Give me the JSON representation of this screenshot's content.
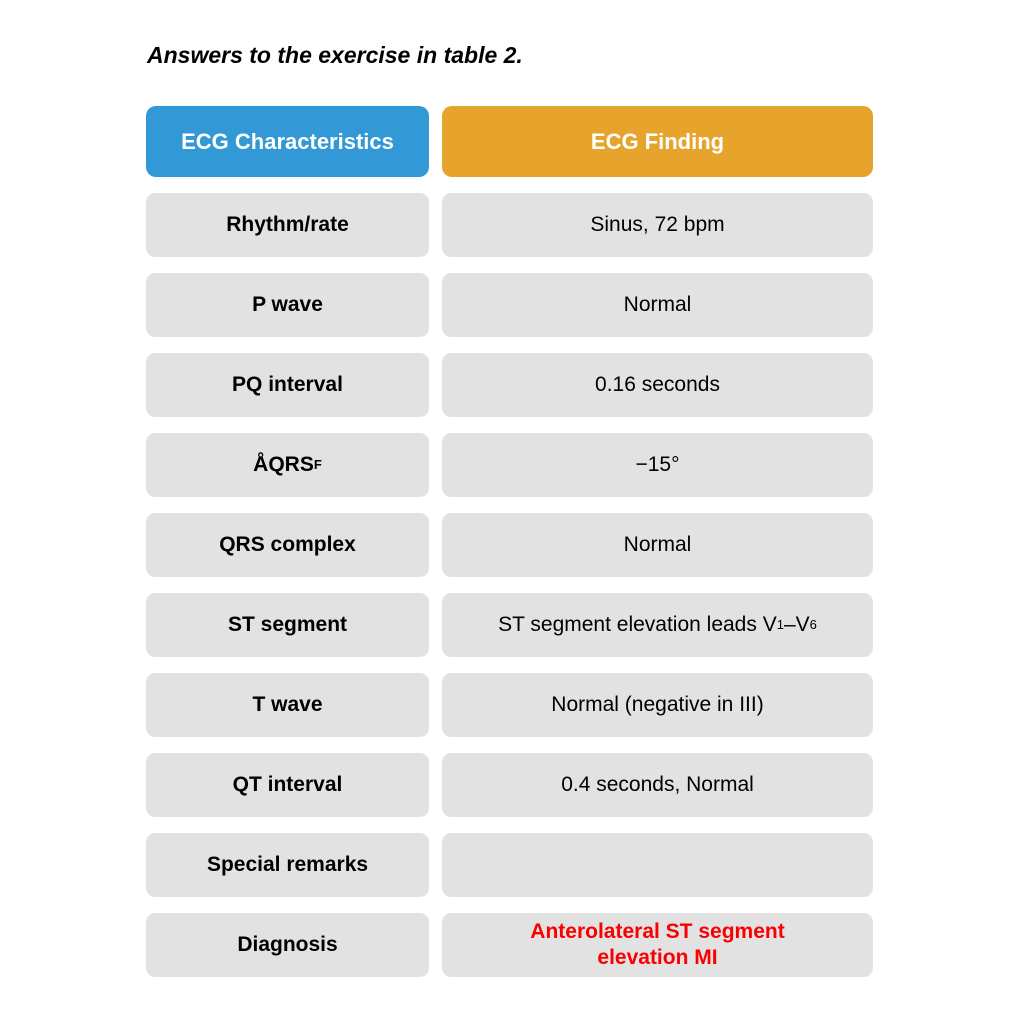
{
  "caption": "Answers to the exercise in table 2.",
  "colors": {
    "header_left_bg": "#3399d6",
    "header_right_bg": "#e6a42c",
    "cell_bg": "#e2e2e2",
    "diagnosis_text": "#fa0000"
  },
  "table": {
    "header": {
      "left": "ECG Characteristics",
      "right": "ECG Finding"
    },
    "rows": [
      {
        "label": [
          {
            "t": "Rhythm/rate"
          }
        ],
        "value": [
          {
            "t": "Sinus, 72 bpm"
          }
        ]
      },
      {
        "label": [
          {
            "t": "P wave"
          }
        ],
        "value": [
          {
            "t": "Normal"
          }
        ]
      },
      {
        "label": [
          {
            "t": "PQ interval"
          }
        ],
        "value": [
          {
            "t": "0.16 seconds"
          }
        ]
      },
      {
        "label": [
          {
            "t": "ÅQRS"
          },
          {
            "t": "F",
            "sub": true
          }
        ],
        "value": [
          {
            "t": "−15°"
          }
        ]
      },
      {
        "label": [
          {
            "t": "QRS complex"
          }
        ],
        "value": [
          {
            "t": "Normal"
          }
        ]
      },
      {
        "label": [
          {
            "t": "ST segment"
          }
        ],
        "value": [
          {
            "t": "ST segment elevation leads V"
          },
          {
            "t": "1",
            "sub": true
          },
          {
            "t": "–V"
          },
          {
            "t": "6",
            "sub": true
          }
        ]
      },
      {
        "label": [
          {
            "t": "T wave"
          }
        ],
        "value": [
          {
            "t": "Normal (negative in III)"
          }
        ]
      },
      {
        "label": [
          {
            "t": "QT interval"
          }
        ],
        "value": [
          {
            "t": "0.4 seconds, Normal"
          }
        ]
      },
      {
        "label": [
          {
            "t": "Special remarks"
          }
        ],
        "value": []
      },
      {
        "label": [
          {
            "t": "Diagnosis"
          }
        ],
        "value": [
          {
            "t": "Anterolateral ST segment\nelevation MI"
          }
        ],
        "value_style": "diagnosis"
      }
    ]
  }
}
